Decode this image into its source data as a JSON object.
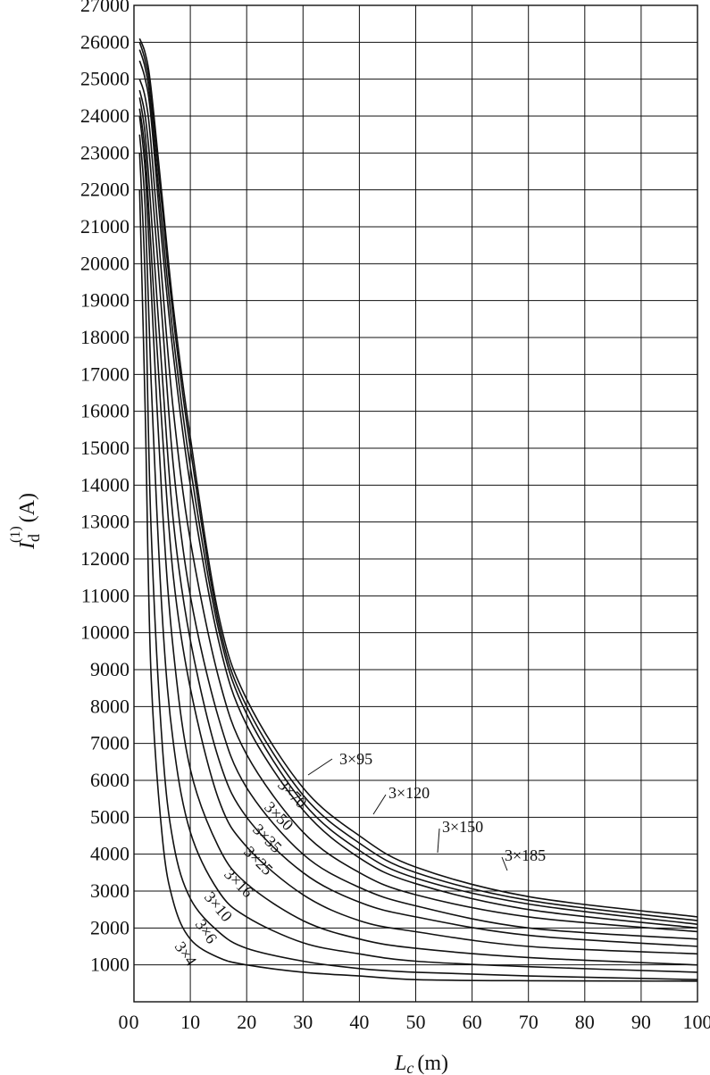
{
  "chart_data": {
    "type": "line",
    "title": "",
    "xlabel": "L",
    "xlabel_sub": "c",
    "xlabel_unit": "(m)",
    "ylabel": "I",
    "ylabel_sub": "d",
    "ylabel_sup": "(1)",
    "ylabel_unit": "(A)",
    "xlim": [
      0,
      100
    ],
    "ylim": [
      0,
      27000
    ],
    "x_ticks": [
      0,
      10,
      20,
      30,
      40,
      50,
      60,
      70,
      80,
      90,
      100
    ],
    "y_ticks": [
      1000,
      2000,
      3000,
      4000,
      5000,
      6000,
      7000,
      8000,
      9000,
      10000,
      11000,
      12000,
      13000,
      14000,
      15000,
      16000,
      17000,
      18000,
      19000,
      20000,
      21000,
      22000,
      23000,
      24000,
      25000,
      26000,
      27000
    ],
    "grid": true,
    "series": [
      {
        "name": "3×4",
        "x": [
          1,
          2,
          3,
          5,
          7,
          10,
          15,
          20,
          30,
          40,
          50,
          70,
          100
        ],
        "y": [
          22000,
          16000,
          9000,
          4500,
          2700,
          1700,
          1200,
          1000,
          800,
          700,
          600,
          570,
          560
        ]
      },
      {
        "name": "3×6",
        "x": [
          1,
          2,
          3,
          5,
          7,
          10,
          15,
          20,
          30,
          40,
          50,
          70,
          100
        ],
        "y": [
          23000,
          19500,
          13000,
          7000,
          4300,
          2800,
          1900,
          1450,
          1100,
          900,
          800,
          700,
          600
        ]
      },
      {
        "name": "3×10",
        "x": [
          1,
          2,
          3,
          5,
          7,
          10,
          15,
          20,
          30,
          40,
          50,
          70,
          100
        ],
        "y": [
          23500,
          21500,
          17000,
          10500,
          7000,
          4600,
          3000,
          2300,
          1600,
          1300,
          1100,
          950,
          800
        ]
      },
      {
        "name": "3×16",
        "x": [
          1,
          2,
          3,
          5,
          7,
          10,
          15,
          20,
          30,
          40,
          50,
          70,
          100
        ],
        "y": [
          24000,
          22500,
          19500,
          13500,
          9500,
          6300,
          4200,
          3200,
          2200,
          1700,
          1450,
          1200,
          1000
        ]
      },
      {
        "name": "3×25",
        "x": [
          1,
          2,
          3,
          5,
          7,
          10,
          15,
          20,
          30,
          40,
          50,
          70,
          100
        ],
        "y": [
          24200,
          23000,
          20500,
          15500,
          11500,
          8500,
          5500,
          4200,
          2900,
          2200,
          1900,
          1500,
          1300
        ]
      },
      {
        "name": "3×35",
        "x": [
          1,
          2,
          3,
          5,
          7,
          10,
          15,
          20,
          30,
          40,
          50,
          70,
          100
        ],
        "y": [
          24500,
          23500,
          21500,
          17000,
          13000,
          9800,
          6600,
          5000,
          3500,
          2700,
          2300,
          1800,
          1500
        ]
      },
      {
        "name": "3×50",
        "x": [
          1,
          2,
          3,
          5,
          7,
          10,
          15,
          20,
          30,
          40,
          50,
          70,
          100
        ],
        "y": [
          24700,
          24000,
          22500,
          18500,
          14500,
          11000,
          7700,
          5800,
          4000,
          3100,
          2600,
          2000,
          1700
        ]
      },
      {
        "name": "3×70",
        "x": [
          1,
          2,
          3,
          5,
          7,
          10,
          15,
          20,
          30,
          40,
          50,
          70,
          100
        ],
        "y": [
          25000,
          24500,
          23300,
          19500,
          16000,
          12500,
          8800,
          6700,
          4600,
          3500,
          2900,
          2300,
          1900
        ]
      },
      {
        "name": "3×95",
        "x": [
          1,
          2,
          3,
          5,
          7,
          10,
          15,
          20,
          30,
          40,
          50,
          70,
          100
        ],
        "y": [
          25500,
          25000,
          24000,
          20500,
          17500,
          14000,
          9800,
          7500,
          5200,
          3900,
          3200,
          2500,
          2000
        ]
      },
      {
        "name": "3×120",
        "x": [
          1,
          2,
          3,
          5,
          7,
          10,
          15,
          20,
          30,
          40,
          50,
          70,
          100
        ],
        "y": [
          25800,
          25300,
          24300,
          21000,
          18000,
          14500,
          10100,
          7800,
          5400,
          4100,
          3350,
          2650,
          2100
        ]
      },
      {
        "name": "3×150",
        "x": [
          1,
          2,
          3,
          5,
          7,
          10,
          15,
          20,
          30,
          40,
          50,
          70,
          100
        ],
        "y": [
          26000,
          25500,
          24600,
          21500,
          18500,
          15000,
          10300,
          8000,
          5600,
          4300,
          3500,
          2750,
          2200
        ]
      },
      {
        "name": "3×185",
        "x": [
          1,
          2,
          3,
          5,
          7,
          10,
          15,
          20,
          30,
          40,
          50,
          70,
          100
        ],
        "y": [
          26100,
          25700,
          24800,
          21800,
          18800,
          15300,
          10500,
          8200,
          5800,
          4500,
          3650,
          2850,
          2300
        ]
      }
    ]
  }
}
